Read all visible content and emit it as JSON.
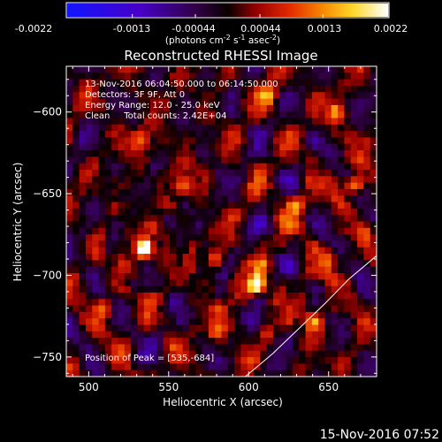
{
  "colorbar": {
    "ticks": [
      "-0.0022",
      "-0.0013",
      "-0.00044",
      "0.00044",
      "0.0013",
      "0.0022"
    ],
    "units_prefix": "(photons cm",
    "units_e1": "-2",
    "units_mid": " s",
    "units_e2": "-1",
    "units_mid2": " asec",
    "units_e3": "-2",
    "units_suffix": ")"
  },
  "chart_data": {
    "type": "heatmap",
    "title": "Reconstructed RHESSI Image",
    "xlabel": "Heliocentric X (arcsec)",
    "ylabel": "Heliocentric Y (arcsec)",
    "xlim": [
      486,
      680
    ],
    "ylim": [
      -762,
      -572
    ],
    "x_ticks": [
      500,
      550,
      600,
      650
    ],
    "y_ticks": [
      -600,
      -650,
      -700,
      -750
    ],
    "value_range": [
      -0.0022,
      0.0022
    ],
    "colormap": "rhessi-red-temperature",
    "info_lines": [
      "13-Nov-2016 06:04:50.000 to 06:14:50.000",
      "Detectors: 3F 9F, Att 0",
      "Energy Range: 12.0 - 25.0 keV",
      "Clean     Total counts: 2.42E+04"
    ],
    "peak_label": "Position of Peak = [535,-684]",
    "bright_sources": [
      {
        "x": 535,
        "y": -684,
        "value": 0.0022
      },
      {
        "x": 605,
        "y": -706,
        "value": 0.002
      },
      {
        "x": 667,
        "y": -645,
        "value": 0.0016
      },
      {
        "x": 640,
        "y": -727,
        "value": 0.0013
      },
      {
        "x": 532,
        "y": -617,
        "value": 0.0011
      },
      {
        "x": 580,
        "y": -735,
        "value": 0.001
      },
      {
        "x": 630,
        "y": -657,
        "value": 0.0012
      },
      {
        "x": 612,
        "y": -590,
        "value": 0.001
      },
      {
        "x": 560,
        "y": -645,
        "value": 0.0009
      },
      {
        "x": 510,
        "y": -720,
        "value": 0.0009
      },
      {
        "x": 655,
        "y": -600,
        "value": 0.0009
      },
      {
        "x": 580,
        "y": -690,
        "value": 0.0008
      },
      {
        "x": 650,
        "y": -690,
        "value": 0.0008
      }
    ],
    "limb_curve": [
      [
        598,
        -762
      ],
      [
        615,
        -748
      ],
      [
        632,
        -732
      ],
      [
        648,
        -717
      ],
      [
        663,
        -702
      ],
      [
        680,
        -688
      ]
    ]
  },
  "footer": {
    "timestamp": "15-Nov-2016 07:52"
  }
}
